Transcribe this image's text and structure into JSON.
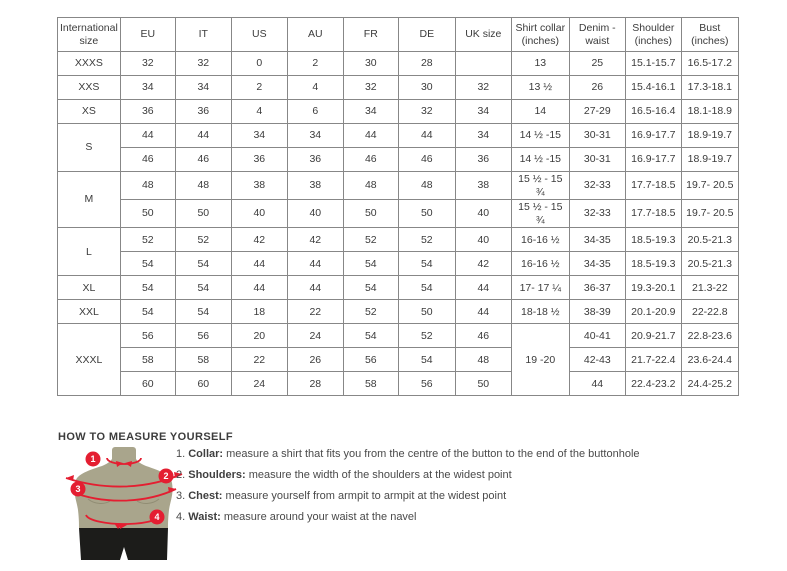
{
  "table": {
    "headers": [
      "International size",
      "EU",
      "IT",
      "US",
      "AU",
      "FR",
      "DE",
      "UK size",
      "Shirt collar (inches)",
      "Denim - waist",
      "Shoulder (inches)",
      "Bust (inches)"
    ],
    "groups": [
      {
        "size": "XXXS",
        "rows": [
          [
            "32",
            "32",
            "0",
            "2",
            "30",
            "28",
            "",
            "13",
            "25",
            "15.1-15.7",
            "16.5-17.2"
          ]
        ]
      },
      {
        "size": "XXS",
        "rows": [
          [
            "34",
            "34",
            "2",
            "4",
            "32",
            "30",
            "32",
            "13 ½",
            "26",
            "15.4-16.1",
            "17.3-18.1"
          ]
        ]
      },
      {
        "size": "XS",
        "rows": [
          [
            "36",
            "36",
            "4",
            "6",
            "34",
            "32",
            "34",
            "14",
            "27-29",
            "16.5-16.4",
            "18.1-18.9"
          ]
        ]
      },
      {
        "size": "S",
        "rows": [
          [
            "44",
            "44",
            "34",
            "34",
            "44",
            "44",
            "34",
            "14 ½ -15",
            "30-31",
            "16.9-17.7",
            "18.9-19.7"
          ],
          [
            "46",
            "46",
            "36",
            "36",
            "46",
            "46",
            "36",
            "14 ½ -15",
            "30-31",
            "16.9-17.7",
            "18.9-19.7"
          ]
        ]
      },
      {
        "size": "M",
        "rows": [
          [
            "48",
            "48",
            "38",
            "38",
            "48",
            "48",
            "38",
            "15 ½ - 15 ¾",
            "32-33",
            "17.7-18.5",
            "19.7- 20.5"
          ],
          [
            "50",
            "50",
            "40",
            "40",
            "50",
            "50",
            "40",
            "15 ½ - 15 ¾",
            "32-33",
            "17.7-18.5",
            "19.7- 20.5"
          ]
        ]
      },
      {
        "size": "L",
        "rows": [
          [
            "52",
            "52",
            "42",
            "42",
            "52",
            "52",
            "40",
            "16-16 ½",
            "34-35",
            "18.5-19.3",
            "20.5-21.3"
          ],
          [
            "54",
            "54",
            "44",
            "44",
            "54",
            "54",
            "42",
            "16-16 ½",
            "34-35",
            "18.5-19.3",
            "20.5-21.3"
          ]
        ]
      },
      {
        "size": "XL",
        "rows": [
          [
            "54",
            "54",
            "44",
            "44",
            "54",
            "54",
            "44",
            "17- 17 ¼",
            "36-37",
            "19.3-20.1",
            "21.3-22"
          ]
        ]
      },
      {
        "size": "XXL",
        "rows": [
          [
            "54",
            "54",
            "18",
            "22",
            "52",
            "50",
            "44",
            "18-18 ½",
            "38-39",
            "20.1-20.9",
            "22-22.8"
          ]
        ]
      },
      {
        "size": "XXXL",
        "collar_merged": "19 -20",
        "rows": [
          [
            "56",
            "56",
            "20",
            "24",
            "54",
            "52",
            "46",
            "40-41",
            "20.9-21.7",
            "22.8-23.6"
          ],
          [
            "58",
            "58",
            "22",
            "26",
            "56",
            "54",
            "48",
            "42-43",
            "21.7-22.4",
            "23.6-24.4"
          ],
          [
            "60",
            "60",
            "24",
            "28",
            "58",
            "56",
            "50",
            "44",
            "22.4-23.2",
            "24.4-25.2"
          ]
        ]
      }
    ]
  },
  "measure": {
    "title": "HOW TO MEASURE YOURSELF",
    "badges": [
      "1",
      "2",
      "3",
      "4"
    ],
    "items": [
      {
        "num": "1.",
        "label": "Collar",
        "desc": "measure a shirt that fits you from the centre of the button to the end of the buttonhole"
      },
      {
        "num": "2.",
        "label": "Shoulders",
        "desc": "measure the width of the shoulders at the widest point"
      },
      {
        "num": "3.",
        "label": "Chest",
        "desc": "measure yourself from armpit to armpit at the widest point"
      },
      {
        "num": "4.",
        "label": "Waist",
        "desc": "measure around your waist at the navel"
      }
    ]
  },
  "colors": {
    "accent_red": "#e41e31",
    "mannequin_body": "#a9a58c",
    "mannequin_shorts": "#1c1c1a",
    "table_border": "#878787",
    "text": "#3b3b3b"
  }
}
